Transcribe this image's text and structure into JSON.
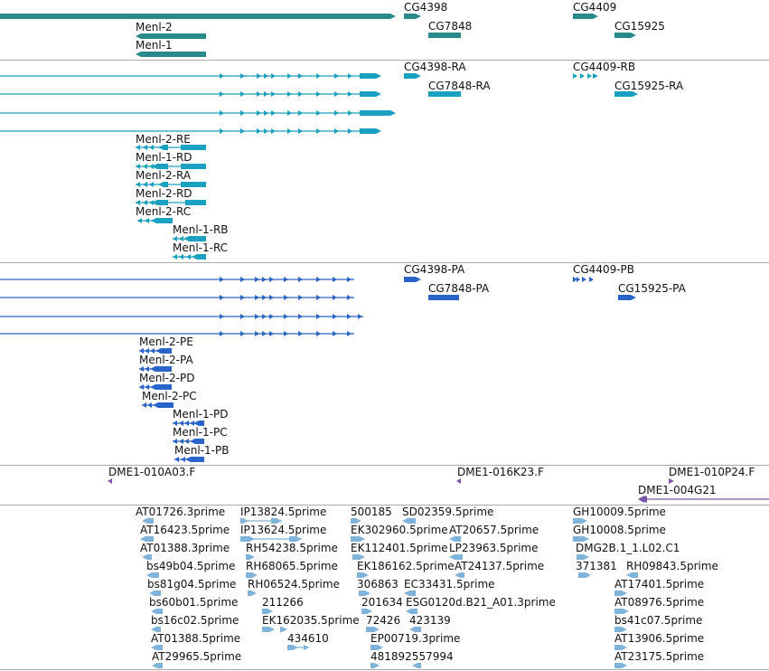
{
  "colors": {
    "gene": "#2a8a8a",
    "transcript_rna": "#1aa0c0",
    "transcript_protein": "#2a64c8",
    "clone": "#7a55aa",
    "est": "#7fb3da",
    "separator": "#a8a8a8"
  },
  "tracks": {
    "genes": {
      "name": "genes",
      "features": [
        "CG4398",
        "CG7848",
        "CG4409",
        "CG15925",
        "Menl-2",
        "Menl-1"
      ]
    },
    "transcripts": {
      "name": "transcripts",
      "features": [
        "CG4398-RA",
        "CG7848-RA",
        "CG4409-RB",
        "CG15925-RA",
        "Menl-2-RE",
        "Menl-1-RD",
        "Menl-2-RA",
        "Menl-2-RD",
        "Menl-2-RC",
        "Menl-1-RB",
        "Menl-1-RC"
      ]
    },
    "proteins": {
      "name": "proteins",
      "features": [
        "CG4398-PA",
        "CG7848-PA",
        "CG4409-PB",
        "CG15925-PA",
        "Menl-2-PE",
        "Menl-2-PA",
        "Menl-2-PD",
        "Menl-2-PC",
        "Menl-1-PD",
        "Menl-1-PC",
        "Menl-1-PB"
      ]
    },
    "clones": {
      "name": "clones",
      "features": [
        "DME1-010A03.F",
        "DME1-016K23.F",
        "DME1-010P24.F",
        "DME1-004G21"
      ]
    },
    "ests": {
      "name": "ests",
      "features": [
        "AT01726.3prime",
        "AT16423.5prime",
        "AT01388.3prime",
        "bs49b04.5prime",
        "bs81g04.5prime",
        "bs60b01.5prime",
        "bs16c02.5prime",
        "AT01388.5prime",
        "AT29965.5prime",
        "IP13824.5prime",
        "IP13624.5prime",
        "RH54238.5prime",
        "RH68065.5prime",
        "RH06524.5prime",
        "211266",
        "EK162035.5prime",
        "434610",
        "500185",
        "EK302960.5prime",
        "EK112401.5prime",
        "EK186162.5prime",
        "306863",
        "201634",
        "72426",
        "EP00719.3prime",
        "481892557994",
        "SD02359.5prime",
        "AT20657.5prime",
        "LP23963.5prime",
        "AT24137.5prime",
        "EC33431.5prime",
        "ESG0120d.B21_A01.3prime",
        "423139",
        "GH10009.5prime",
        "GH10008.5prime",
        "DMG2B.1_1.L02.C1",
        "371381",
        "RH09843.5prime",
        "AT17401.5prime",
        "AT08976.5prime",
        "bs41c07.5prime",
        "AT13906.5prime",
        "AT23175.5prime"
      ]
    }
  }
}
